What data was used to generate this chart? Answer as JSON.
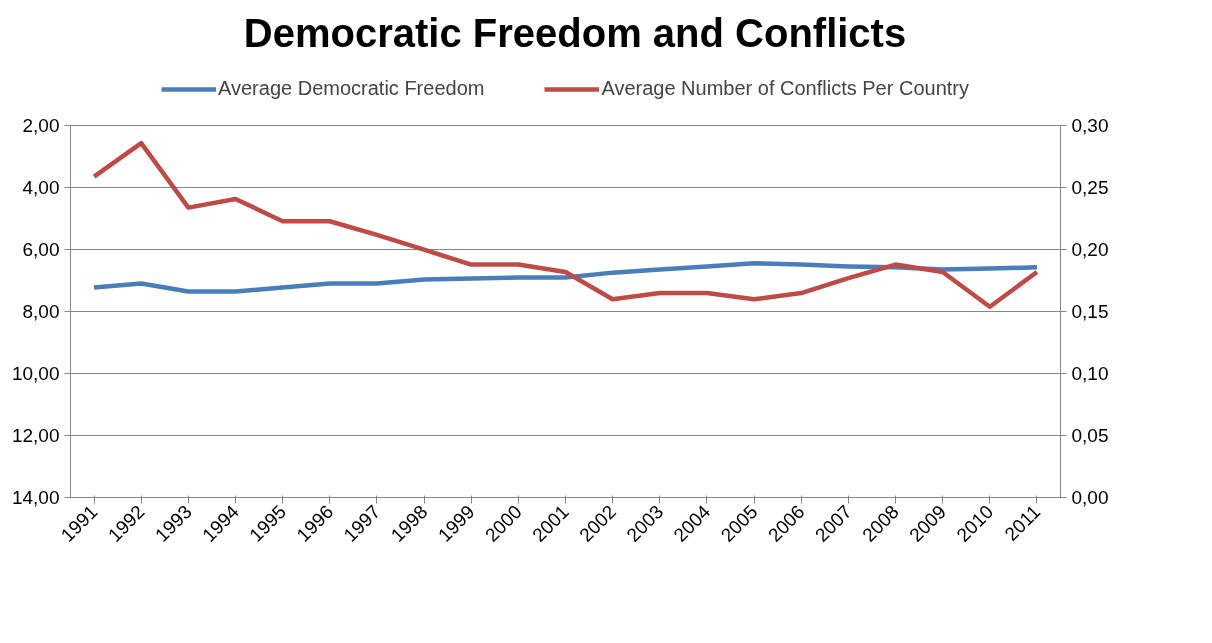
{
  "chart_data": {
    "type": "line",
    "title": "Democratic Freedom and Conflicts",
    "categories": [
      "1991",
      "1992",
      "1993",
      "1994",
      "1995",
      "1996",
      "1997",
      "1998",
      "1999",
      "2000",
      "2001",
      "2002",
      "2003",
      "2004",
      "2005",
      "2006",
      "2007",
      "2008",
      "2009",
      "2010",
      "2011"
    ],
    "series": [
      {
        "name": "Average Democratic Freedom",
        "color": "#4a7ebb",
        "values": [
          7.22,
          7.09,
          7.35,
          7.35,
          7.22,
          7.09,
          7.09,
          6.96,
          6.93,
          6.9,
          6.9,
          6.74,
          6.64,
          6.54,
          6.44,
          6.48,
          6.54,
          6.57,
          6.64,
          6.61,
          6.57
        ]
      },
      {
        "name": "Average Number of Conflicts Per Country",
        "color": "#be4b48",
        "axis": "y2",
        "values": [
          0.259,
          0.286,
          0.234,
          0.241,
          0.223,
          0.223,
          0.212,
          0.2,
          0.188,
          0.188,
          0.182,
          0.16,
          0.165,
          0.165,
          0.16,
          0.165,
          0.177,
          0.188,
          0.182,
          0.154,
          0.182
        ]
      }
    ],
    "ylim": [
      14,
      2
    ],
    "yticks": [
      {
        "value": 2,
        "label": "2,00"
      },
      {
        "value": 4,
        "label": "4,00"
      },
      {
        "value": 6,
        "label": "6,00"
      },
      {
        "value": 8,
        "label": "8,00"
      },
      {
        "value": 10,
        "label": "10,00"
      },
      {
        "value": 12,
        "label": "12,00"
      },
      {
        "value": 14,
        "label": "14,00"
      }
    ],
    "y2lim": [
      0,
      0.3
    ],
    "y2ticks": [
      {
        "value": 0,
        "label": "0,00"
      },
      {
        "value": 0.05,
        "label": "0,05"
      },
      {
        "value": 0.1,
        "label": "0,10"
      },
      {
        "value": 0.15,
        "label": "0,15"
      },
      {
        "value": 0.2,
        "label": "0,20"
      },
      {
        "value": 0.25,
        "label": "0,25"
      },
      {
        "value": 0.3,
        "label": "0,30"
      }
    ],
    "grid": "y",
    "legend": "top",
    "marker": "none",
    "line_style": "solid"
  }
}
